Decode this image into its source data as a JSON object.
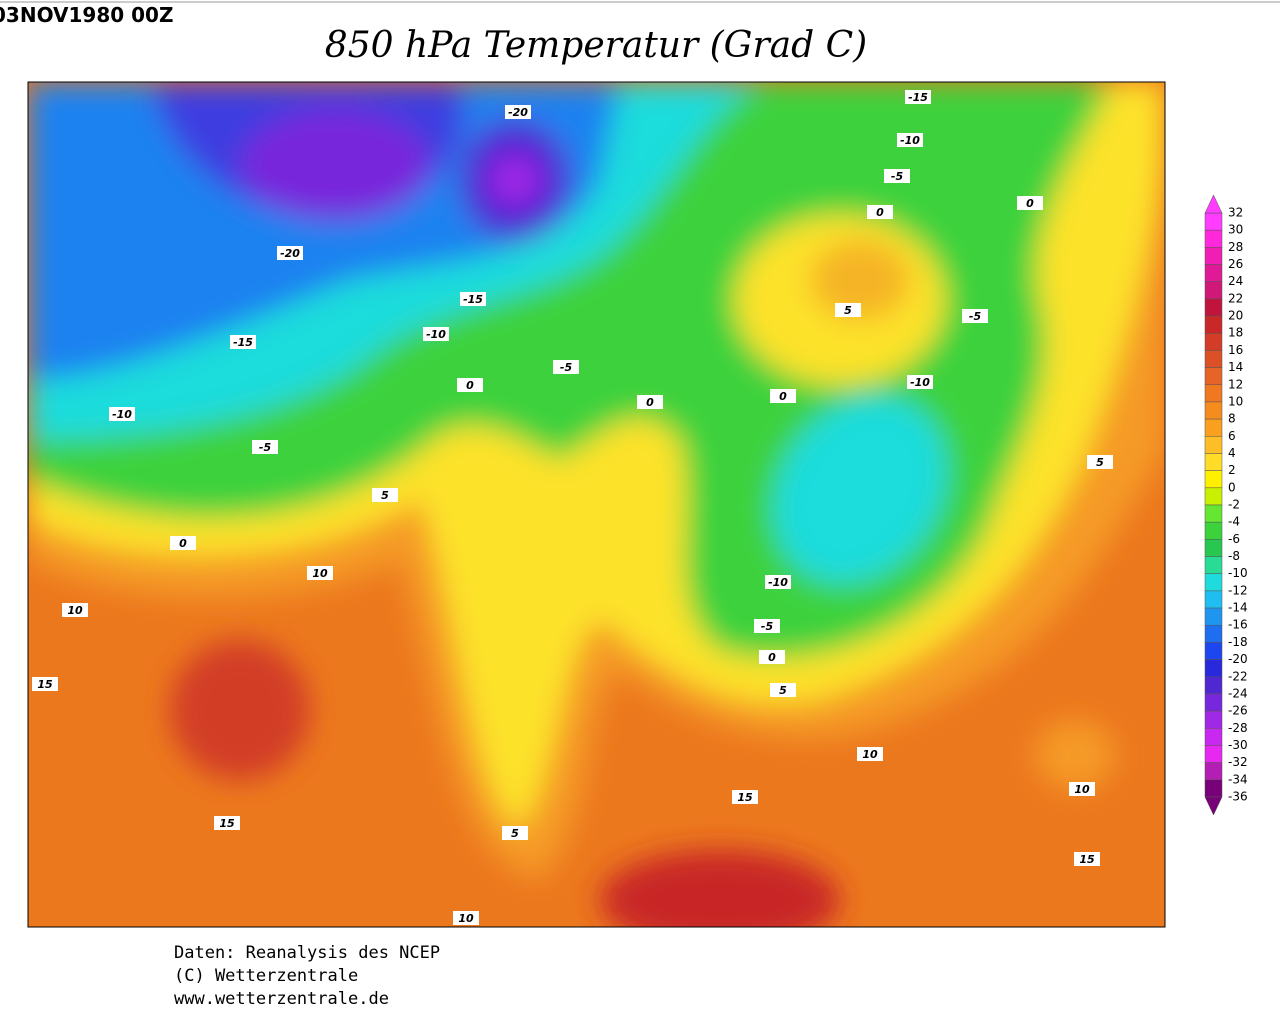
{
  "header": {
    "date": "03NOV1980 00Z",
    "title": "850 hPa Temperatur (Grad C)"
  },
  "map": {
    "contour_labels": [
      -15,
      -20,
      -10,
      -5,
      0,
      0,
      -20,
      -15,
      5,
      -5,
      -10,
      -15,
      -5,
      0,
      -10,
      0,
      0,
      -10,
      -5,
      5,
      5,
      0,
      10,
      -10,
      10,
      -5,
      0,
      15,
      5,
      10,
      15,
      10,
      15,
      5,
      15,
      10
    ]
  },
  "colorbar": {
    "labels": [
      32,
      30,
      28,
      26,
      24,
      22,
      20,
      18,
      16,
      14,
      12,
      10,
      8,
      6,
      4,
      2,
      0,
      -2,
      -4,
      -6,
      -8,
      -10,
      -12,
      -14,
      -16,
      -18,
      -20,
      -22,
      -24,
      -26,
      -28,
      -30,
      -32,
      -34,
      -36
    ],
    "colors": [
      "#ff3cff",
      "#ff28dc",
      "#f01eb4",
      "#e01a96",
      "#d01878",
      "#c0143c",
      "#c82828",
      "#d23c28",
      "#dc5028",
      "#e66428",
      "#f07820",
      "#f58c1e",
      "#fa9f1e",
      "#ffbe28",
      "#ffdc28",
      "#fff000",
      "#c8f000",
      "#64e632",
      "#3cd23c",
      "#28c850",
      "#28dc96",
      "#1edcdc",
      "#1ebef0",
      "#1e96f0",
      "#1e6ef0",
      "#1e46f0",
      "#2828dc",
      "#5028d2",
      "#7828dc",
      "#a028e6",
      "#c828f0",
      "#e628f0",
      "#b41eb4",
      "#780078"
    ]
  },
  "footer": {
    "lines": [
      "Daten: Reanalysis des NCEP",
      "(C) Wetterzentrale",
      "www.wetterzentrale.de"
    ]
  }
}
